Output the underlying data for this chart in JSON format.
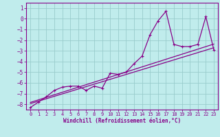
{
  "xlabel": "Windchill (Refroidissement éolien,°C)",
  "xlim": [
    -0.5,
    23.5
  ],
  "ylim": [
    -8.5,
    1.5
  ],
  "yticks": [
    1,
    0,
    -1,
    -2,
    -3,
    -4,
    -5,
    -6,
    -7,
    -8
  ],
  "xticks": [
    0,
    1,
    2,
    3,
    4,
    5,
    6,
    7,
    8,
    9,
    10,
    11,
    12,
    13,
    14,
    15,
    16,
    17,
    18,
    19,
    20,
    21,
    22,
    23
  ],
  "bg_color": "#c0ecec",
  "line_color": "#880088",
  "grid_color": "#99cccc",
  "spine_color": "#880088",
  "series1_x": [
    0,
    1,
    2,
    3,
    4,
    5,
    6,
    7,
    8,
    9,
    10,
    11,
    12,
    13,
    14,
    15,
    16,
    17,
    18,
    19,
    20,
    21,
    22,
    23
  ],
  "series1_y": [
    -8.3,
    -7.8,
    -7.3,
    -6.7,
    -6.4,
    -6.3,
    -6.3,
    -6.7,
    -6.3,
    -6.5,
    -5.1,
    -5.2,
    -5.0,
    -4.2,
    -3.5,
    -1.5,
    -0.2,
    0.7,
    -2.4,
    -2.6,
    -2.6,
    -2.4,
    0.2,
    -2.9
  ],
  "series2_x": [
    0,
    2,
    10,
    23
  ],
  "series2_y": [
    -8.3,
    -7.5,
    -5.0,
    -3.0
  ],
  "series3_x": [
    0,
    2,
    10,
    23
  ],
  "series3_y": [
    -8.3,
    -7.3,
    -4.7,
    -2.7
  ]
}
